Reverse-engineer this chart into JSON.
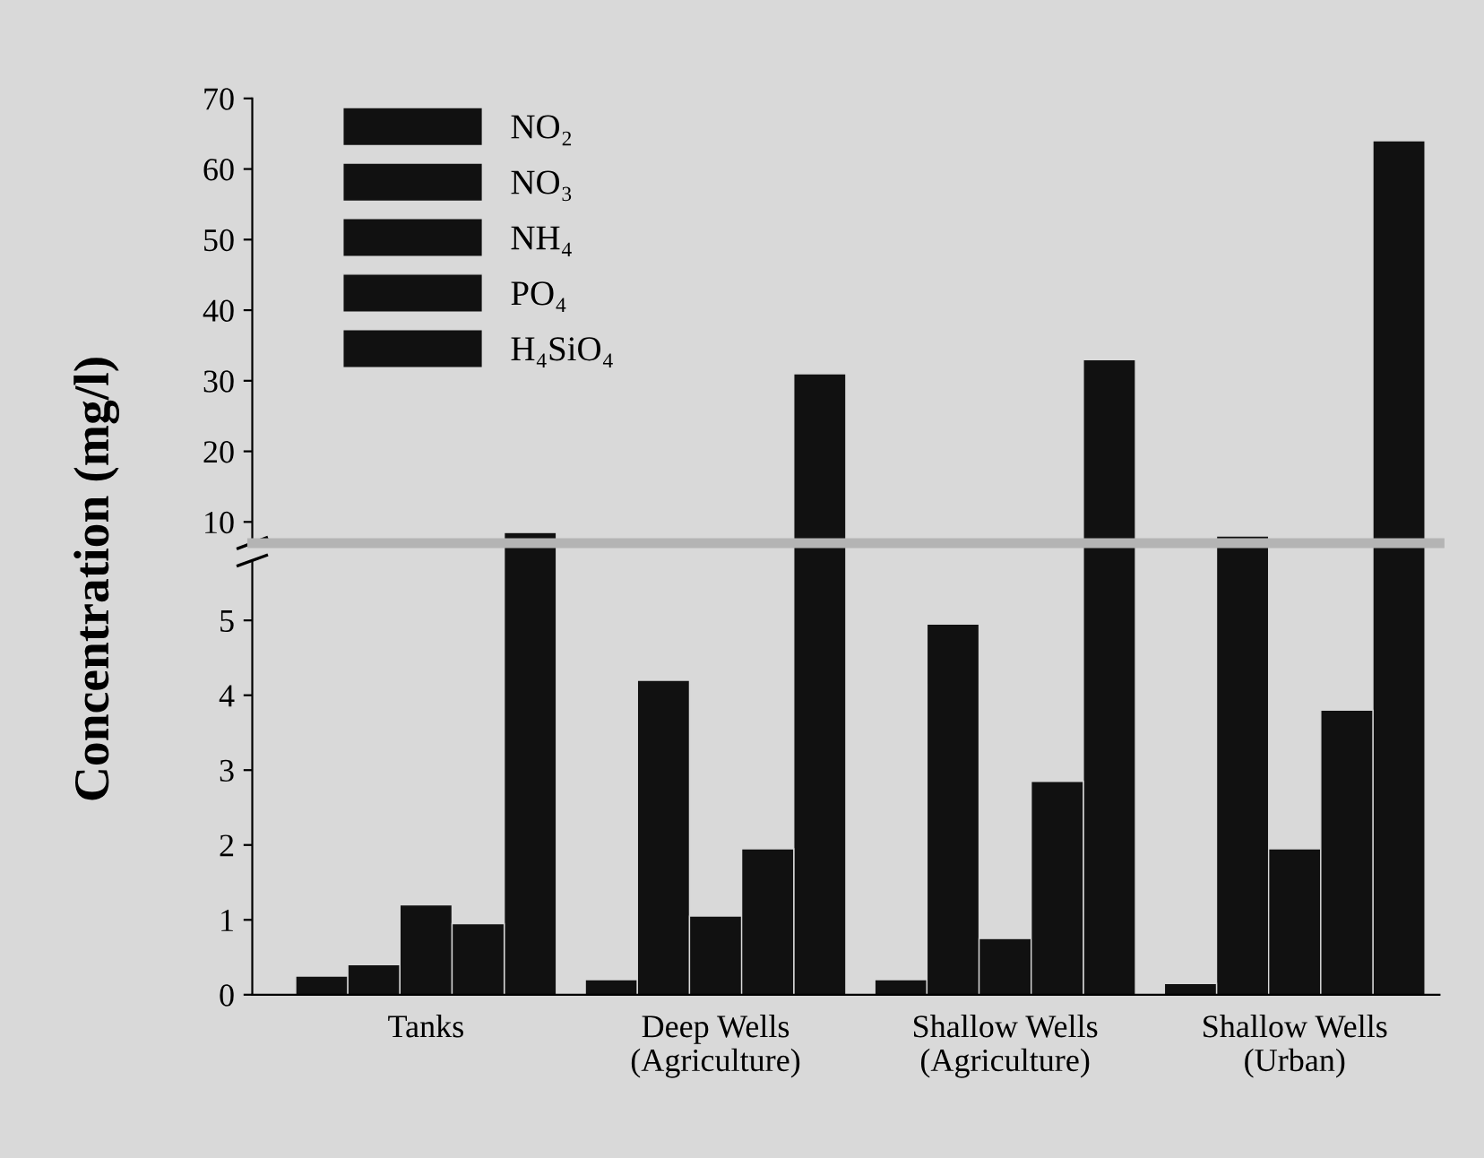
{
  "chart_data": [
    {
      "type": "bar",
      "ylabel": "Concentration (mg/l)",
      "categories": [
        null,
        null,
        null,
        null
      ],
      "series": [
        {
          "name": "NO₂",
          "color": "#111111",
          "values": [
            null,
            null,
            null,
            null
          ]
        },
        {
          "name": "NO₃",
          "color": "#111111",
          "values": [
            null,
            null,
            null,
            8
          ]
        },
        {
          "name": "NH₄",
          "color": "#111111",
          "values": [
            null,
            null,
            null,
            null
          ]
        },
        {
          "name": "PO₄",
          "color": "#111111",
          "values": [
            null,
            null,
            null,
            null
          ]
        },
        {
          "name": "H₄SiO₄",
          "color": "#111111",
          "values": [
            8.5,
            31,
            33,
            64
          ]
        }
      ],
      "ylim": [
        7,
        70
      ],
      "yticks": [
        10,
        20,
        30,
        40,
        50,
        60,
        70
      ],
      "tick_labels": "y",
      "grid": false,
      "legend": "top left"
    },
    {
      "type": "bar",
      "categories": [
        "Tanks",
        "Deep Wells\n(Agriculture)",
        "Shallow Wells\n(Agriculture)",
        "Shallow Wells\n(Urban)"
      ],
      "series": [
        {
          "color": "#111111",
          "values": [
            0.25,
            0.2,
            0.2,
            0.15
          ]
        },
        {
          "color": "#111111",
          "values": [
            0.4,
            4.2,
            4.95,
            null
          ]
        },
        {
          "color": "#111111",
          "values": [
            1.2,
            1.05,
            0.75,
            1.95
          ]
        },
        {
          "color": "#111111",
          "values": [
            0.95,
            1.95,
            2.85,
            3.8
          ]
        },
        {
          "color": "#111111",
          "values": [
            null,
            null,
            null,
            null
          ]
        }
      ],
      "ylim": [
        0,
        5.8
      ],
      "yticks": [
        0,
        1,
        2,
        3,
        4,
        5
      ],
      "grid": false
    }
  ]
}
